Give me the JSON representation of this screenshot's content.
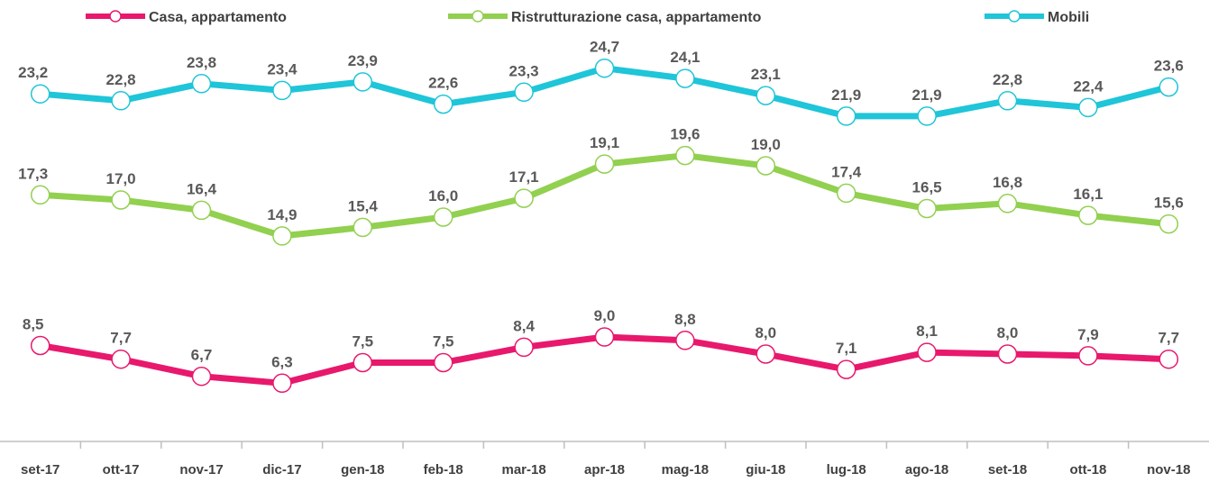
{
  "chart_data": {
    "type": "line",
    "categories": [
      "set-17",
      "ott-17",
      "nov-17",
      "dic-17",
      "gen-18",
      "feb-18",
      "mar-18",
      "apr-18",
      "mag-18",
      "giu-18",
      "lug-18",
      "ago-18",
      "set-18",
      "ott-18",
      "nov-18"
    ],
    "ylim": [
      3,
      28
    ],
    "series": [
      {
        "name": "Casa, appartamento",
        "color": "#e8186d",
        "values": [
          8.5,
          7.7,
          6.7,
          6.3,
          7.5,
          7.5,
          8.4,
          9.0,
          8.8,
          8.0,
          7.1,
          8.1,
          8.0,
          7.9,
          7.7
        ],
        "value_labels": [
          "8,5",
          "7,7",
          "6,7",
          "6,3",
          "7,5",
          "7,5",
          "8,4",
          "9,0",
          "8,8",
          "8,0",
          "7,1",
          "8,1",
          "8,0",
          "7,9",
          "7,7"
        ]
      },
      {
        "name": "Ristrutturazione casa, appartamento",
        "color": "#92d050",
        "values": [
          17.3,
          17.0,
          16.4,
          14.9,
          15.4,
          16.0,
          17.1,
          19.1,
          19.6,
          19.0,
          17.4,
          16.5,
          16.8,
          16.1,
          15.6
        ],
        "value_labels": [
          "17,3",
          "17,0",
          "16,4",
          "14,9",
          "15,4",
          "16,0",
          "17,1",
          "19,1",
          "19,6",
          "19,0",
          "17,4",
          "16,5",
          "16,8",
          "16,1",
          "15,6"
        ]
      },
      {
        "name": "Mobili",
        "color": "#1fc5d8",
        "values": [
          23.2,
          22.8,
          23.8,
          23.4,
          23.9,
          22.6,
          23.3,
          24.7,
          24.1,
          23.1,
          21.9,
          21.9,
          22.8,
          22.4,
          23.6
        ],
        "value_labels": [
          "23,2",
          "22,8",
          "23,8",
          "23,4",
          "23,9",
          "22,6",
          "23,3",
          "24,7",
          "24,1",
          "23,1",
          "21,9",
          "21,9",
          "22,8",
          "22,4",
          "23,6"
        ]
      }
    ],
    "legend": "top"
  }
}
